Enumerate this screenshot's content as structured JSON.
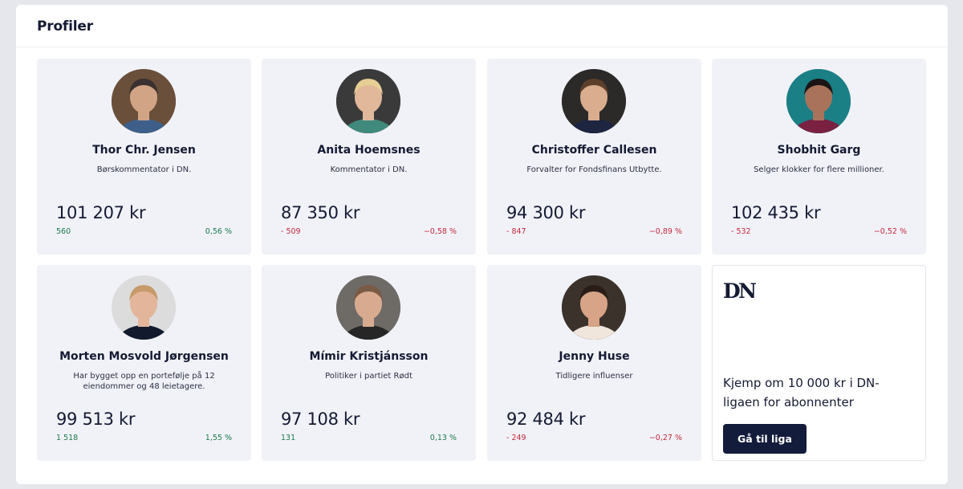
{
  "panel": {
    "title": "Profiler"
  },
  "profiles": [
    {
      "name": "Thor Chr. Jensen",
      "description": "Børskommentator i DN.",
      "value": "101 207 kr",
      "change_abs": "560",
      "change_pct": "0,56 %",
      "trend": "positive",
      "avatar": {
        "bg": "#6a4f3a",
        "skin": "#d2a486",
        "hair": "#3a3030",
        "shirt": "#3d5f8a"
      }
    },
    {
      "name": "Anita Hoemsnes",
      "description": "Kommentator i DN.",
      "value": "87 350 kr",
      "change_abs": "- 509",
      "change_pct": "−0,58 %",
      "trend": "negative",
      "avatar": {
        "bg": "#3a3a3a",
        "skin": "#e2b89a",
        "hair": "#e6cf94",
        "shirt": "#3f8a7c"
      }
    },
    {
      "name": "Christoffer Callesen",
      "description": "Forvalter for Fondsfinans Utbytte.",
      "value": "94 300 kr",
      "change_abs": "- 847",
      "change_pct": "−0,89 %",
      "trend": "negative",
      "avatar": {
        "bg": "#2c2a28",
        "skin": "#d9ad8e",
        "hair": "#5b3f2a",
        "shirt": "#1d2540"
      }
    },
    {
      "name": "Shobhit Garg",
      "description": "Selger klokker for flere millioner.",
      "value": "102 435 kr",
      "change_abs": "- 532",
      "change_pct": "−0,52 %",
      "trend": "negative",
      "avatar": {
        "bg": "#1b7f86",
        "skin": "#a8735a",
        "hair": "#1a1414",
        "shirt": "#7a2040"
      }
    },
    {
      "name": "Morten Mosvold Jørgensen",
      "description": "Har bygget opp en portefølje på 12 eiendommer og 48 leietagere.",
      "value": "99 513 kr",
      "change_abs": "1 518",
      "change_pct": "1,55 %",
      "trend": "positive",
      "avatar": {
        "bg": "#dcdcdc",
        "skin": "#e3b59a",
        "hair": "#c79a6a",
        "shirt": "#121a2e"
      }
    },
    {
      "name": "Mímir Kristjánsson",
      "description": "Politiker i partiet Rødt",
      "value": "97 108 kr",
      "change_abs": "131",
      "change_pct": "0,13 %",
      "trend": "positive",
      "avatar": {
        "bg": "#6e6a66",
        "skin": "#d8ab90",
        "hair": "#7a5a44",
        "shirt": "#262626"
      }
    },
    {
      "name": "Jenny Huse",
      "description": "Tidligere influenser",
      "value": "92 484 kr",
      "change_abs": "- 249",
      "change_pct": "−0,27 %",
      "trend": "negative",
      "avatar": {
        "bg": "#3c322c",
        "skin": "#d7a487",
        "hair": "#2a1d17",
        "shirt": "#f0e6dc"
      }
    }
  ],
  "promo": {
    "logo": "DN",
    "text": "Kjemp om 10 000 kr i DN-ligaen for abonnenter",
    "button_label": "Gå til liga"
  },
  "colors": {
    "positive": "#1a7a4a",
    "negative": "#c4283e",
    "button_bg": "#141c3c",
    "card_bg": "#f1f2f7"
  }
}
